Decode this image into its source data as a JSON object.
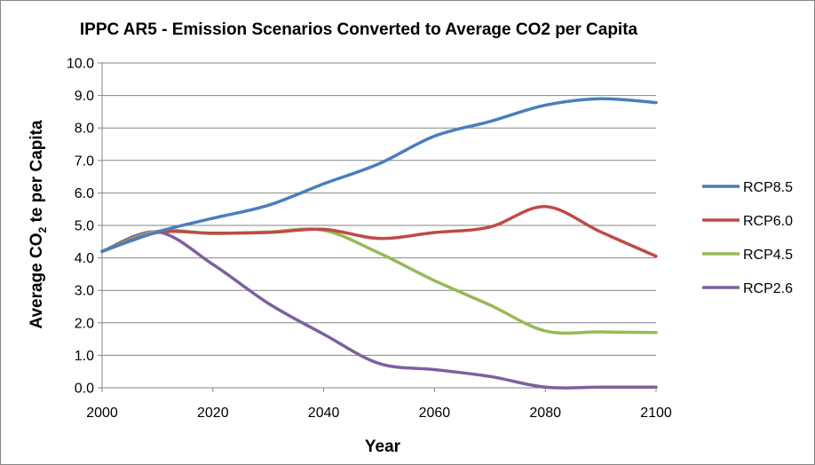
{
  "chart_data": {
    "type": "line",
    "title": "IPPC AR5 - Emission Scenarios Converted to Average CO2 per Capita",
    "xlabel": "Year",
    "ylabel_parts": {
      "pre": "Average CO",
      "sub": "2",
      "post": " te per Capita"
    },
    "xlim": [
      2000,
      2100
    ],
    "ylim": [
      0,
      10
    ],
    "xticks": [
      2000,
      2020,
      2040,
      2060,
      2080,
      2100
    ],
    "yticks": [
      "0.0",
      "1.0",
      "2.0",
      "3.0",
      "4.0",
      "5.0",
      "6.0",
      "7.0",
      "8.0",
      "9.0",
      "10.0"
    ],
    "grid": "horizontal",
    "legend": "right",
    "series": [
      {
        "name": "RCP8.5",
        "color": "#4a7ebb",
        "x": [
          2000,
          2010,
          2020,
          2030,
          2040,
          2050,
          2060,
          2070,
          2080,
          2090,
          2100
        ],
        "y": [
          4.2,
          4.8,
          5.22,
          5.62,
          6.28,
          6.9,
          7.75,
          8.2,
          8.7,
          8.9,
          8.78
        ]
      },
      {
        "name": "RCP6.0",
        "color": "#be4b48",
        "x": [
          2000,
          2010,
          2020,
          2030,
          2040,
          2050,
          2060,
          2070,
          2080,
          2090,
          2100
        ],
        "y": [
          4.2,
          4.78,
          4.76,
          4.78,
          4.88,
          4.6,
          4.78,
          4.95,
          5.58,
          4.8,
          4.05
        ]
      },
      {
        "name": "RCP4.5",
        "color": "#98b954",
        "x": [
          2000,
          2010,
          2020,
          2030,
          2040,
          2050,
          2060,
          2070,
          2080,
          2090,
          2100
        ],
        "y": [
          4.2,
          4.82,
          4.75,
          4.8,
          4.85,
          4.15,
          3.3,
          2.55,
          1.75,
          1.72,
          1.7
        ]
      },
      {
        "name": "RCP2.6",
        "color": "#7d60a0",
        "x": [
          2000,
          2010,
          2020,
          2030,
          2040,
          2050,
          2060,
          2070,
          2080,
          2090,
          2100
        ],
        "y": [
          4.2,
          4.8,
          3.8,
          2.6,
          1.65,
          0.75,
          0.56,
          0.35,
          0.02,
          0.02,
          0.02
        ]
      }
    ]
  }
}
